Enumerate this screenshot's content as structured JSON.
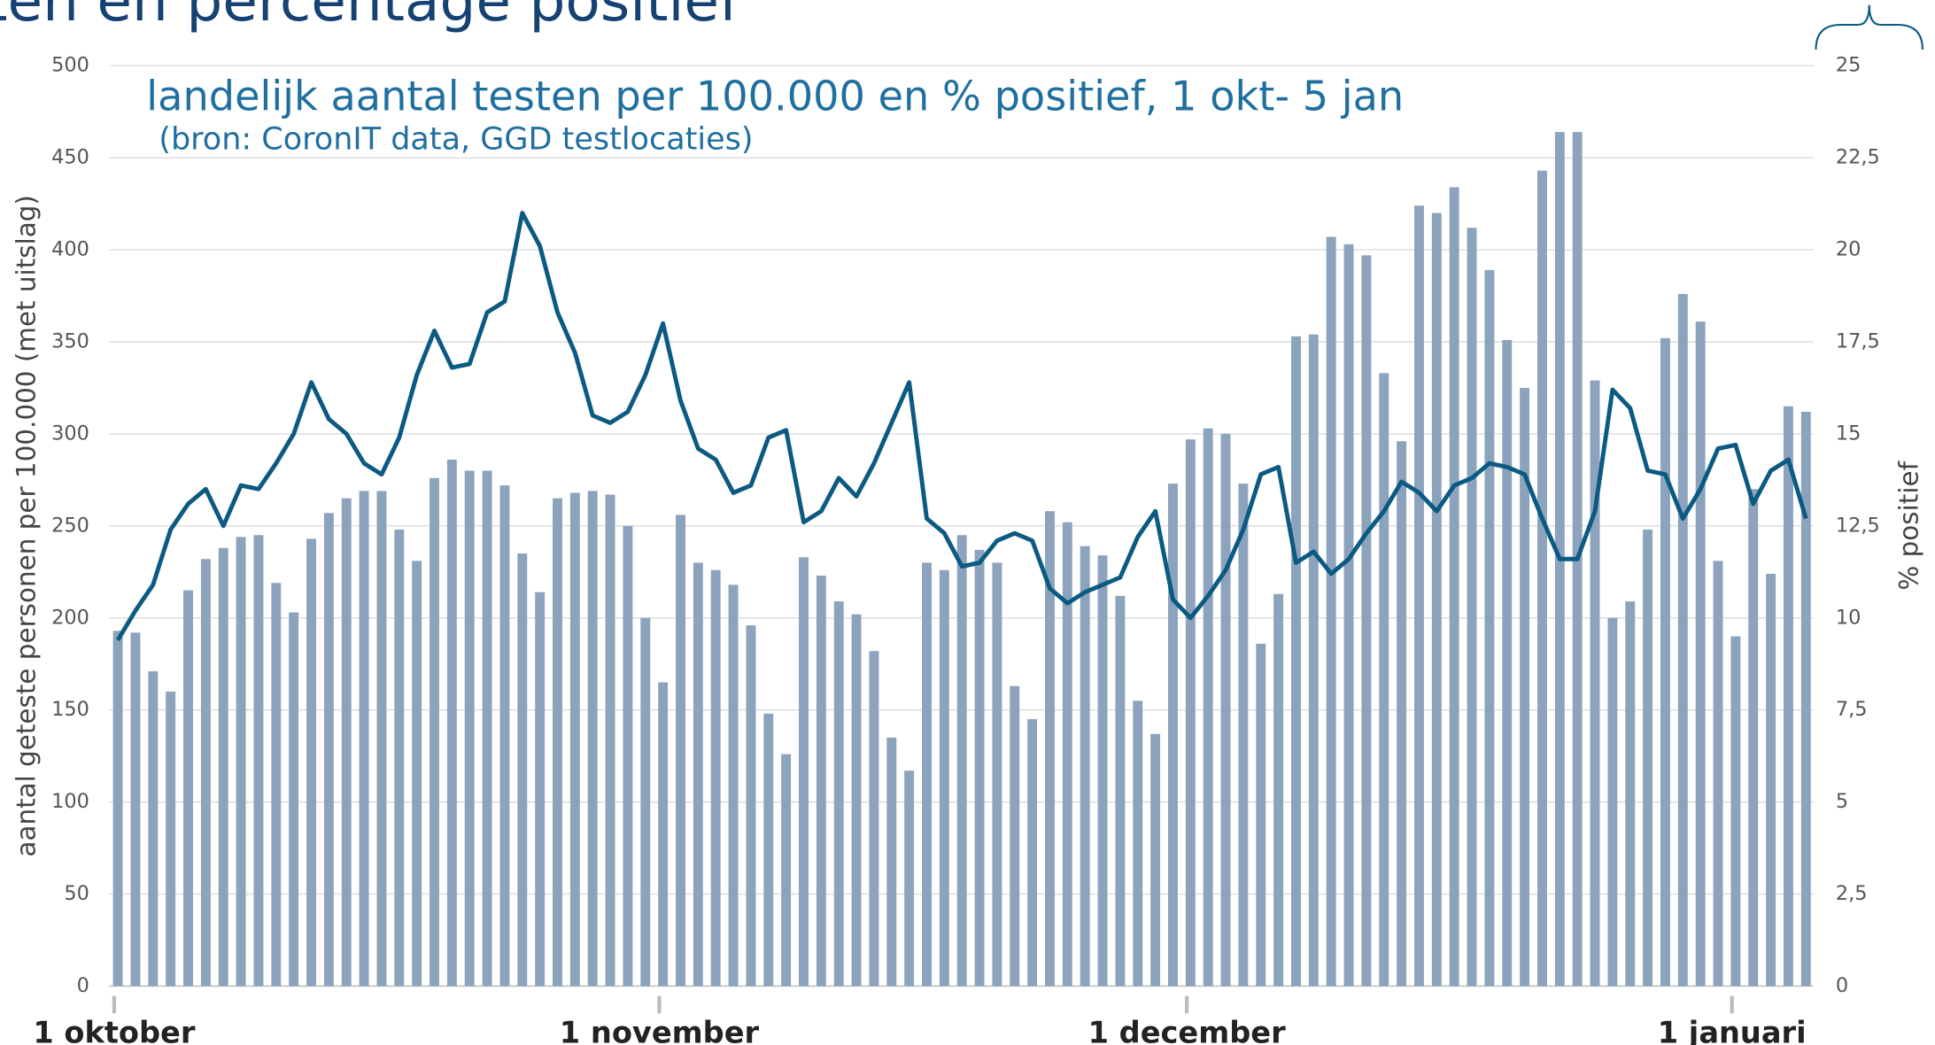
{
  "chart_data": {
    "type": "bar-line",
    "title": "ten en percentage positief",
    "subtitle": "landelijk aantal testen per 100.000 en % positief, 1 okt- 5 jan",
    "source": "(bron: CoronIT data, GGD testlocaties)",
    "y_label": "aantal geteste personen per 100.000 (met uitslag)",
    "y2_label": "% positief",
    "categories": [
      "1 oktober",
      null,
      null,
      null,
      null,
      null,
      null,
      null,
      null,
      null,
      null,
      null,
      null,
      null,
      null,
      null,
      null,
      null,
      null,
      null,
      null,
      null,
      null,
      null,
      null,
      null,
      null,
      null,
      null,
      null,
      null,
      "1 november",
      null,
      null,
      null,
      null,
      null,
      null,
      null,
      null,
      null,
      null,
      null,
      null,
      null,
      null,
      null,
      null,
      null,
      null,
      null,
      null,
      null,
      null,
      null,
      null,
      null,
      null,
      null,
      null,
      null,
      "1 december",
      null,
      null,
      null,
      null,
      null,
      null,
      null,
      null,
      null,
      null,
      null,
      null,
      null,
      null,
      null,
      null,
      null,
      null,
      null,
      null,
      null,
      null,
      null,
      null,
      null,
      null,
      null,
      null,
      null,
      null,
      "1 januari",
      null,
      null,
      null,
      null
    ],
    "series": [
      {
        "type": "bar",
        "color": "#8ca3bd",
        "axis": "y",
        "values": [
          193,
          192,
          171,
          160,
          215,
          232,
          238,
          244,
          245,
          219,
          203,
          243,
          257,
          265,
          269,
          269,
          248,
          231,
          276,
          286,
          280,
          280,
          272,
          235,
          214,
          265,
          268,
          269,
          267,
          250,
          200,
          165,
          256,
          230,
          226,
          218,
          196,
          148,
          126,
          233,
          223,
          209,
          202,
          182,
          135,
          117,
          230,
          226,
          245,
          237,
          230,
          163,
          145,
          258,
          252,
          239,
          234,
          212,
          155,
          137,
          273,
          297,
          303,
          300,
          273,
          186,
          213,
          353,
          354,
          407,
          403,
          397,
          333,
          296,
          424,
          420,
          434,
          412,
          389,
          351,
          325,
          443,
          464,
          464,
          329,
          200,
          209,
          248,
          352,
          376,
          361,
          231,
          190,
          270,
          224,
          315,
          312
        ]
      },
      {
        "type": "line",
        "color": "#0b5a82",
        "axis": "y2",
        "values": [
          9.4,
          10.2,
          10.9,
          12.4,
          13.1,
          13.5,
          12.5,
          13.6,
          13.5,
          14.2,
          15.0,
          16.4,
          15.4,
          15.0,
          14.2,
          13.9,
          14.9,
          16.6,
          17.8,
          16.8,
          16.9,
          18.3,
          18.6,
          21.0,
          20.1,
          18.3,
          17.2,
          15.5,
          15.3,
          15.6,
          16.6,
          18.0,
          15.9,
          14.6,
          14.3,
          13.4,
          13.6,
          14.9,
          15.1,
          12.6,
          12.9,
          13.8,
          13.3,
          14.2,
          15.3,
          16.4,
          12.7,
          12.3,
          11.4,
          11.5,
          12.1,
          12.3,
          12.1,
          10.8,
          10.4,
          10.7,
          10.9,
          11.1,
          12.2,
          12.9,
          10.5,
          10.0,
          10.6,
          11.3,
          12.4,
          13.9,
          14.1,
          11.5,
          11.8,
          11.2,
          11.6,
          12.3,
          12.9,
          13.7,
          13.4,
          12.9,
          13.6,
          13.8,
          14.2,
          14.1,
          13.9,
          12.7,
          11.6,
          11.6,
          12.9,
          16.2,
          15.7,
          14.0,
          13.9,
          12.7,
          13.5,
          14.6,
          14.7,
          13.1,
          14.0,
          14.3,
          12.7
        ]
      }
    ],
    "ylim": [
      0,
      500
    ],
    "yticks": [
      0,
      50,
      100,
      150,
      200,
      250,
      300,
      350,
      400,
      450,
      500
    ],
    "y2lim": [
      0,
      25
    ],
    "y2ticks": [
      0,
      {
        "value": 2.5,
        "label": "2,5"
      },
      5,
      {
        "value": 7.5,
        "label": "7,5"
      },
      10,
      {
        "value": 12.5,
        "label": "12,5"
      },
      15,
      {
        "value": 17.5,
        "label": "17,5"
      },
      20,
      {
        "value": 22.5,
        "label": "22,5"
      },
      25
    ],
    "grid": true
  }
}
